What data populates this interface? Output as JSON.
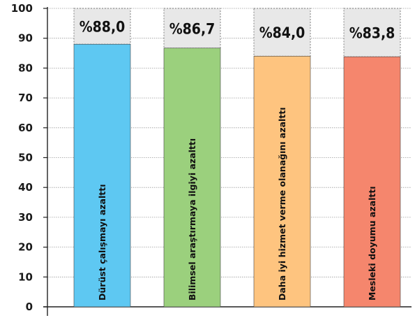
{
  "chart_data": {
    "type": "bar",
    "categories": [
      "Dürüst çalışmayı azalttı",
      "Bilimsel araştırmaya ilgiyi azalttı",
      "Daha iyi hizmet verme olanağını azalttı",
      "Mesleki doyumu azalttı"
    ],
    "values": [
      88.0,
      86.7,
      84.0,
      83.8
    ],
    "value_labels": [
      "%88,0",
      "%86,7",
      "%84,0",
      "%83,8"
    ],
    "ylim": [
      0,
      100
    ],
    "yticks": [
      0,
      10,
      20,
      30,
      40,
      50,
      60,
      70,
      80,
      90,
      100
    ],
    "grid": true,
    "colors": [
      "#5ec8f2",
      "#9bd07d",
      "#fec47f",
      "#f5866d"
    ],
    "remainder_color": "#e8e8e8",
    "title": "",
    "xlabel": "",
    "ylabel": ""
  }
}
